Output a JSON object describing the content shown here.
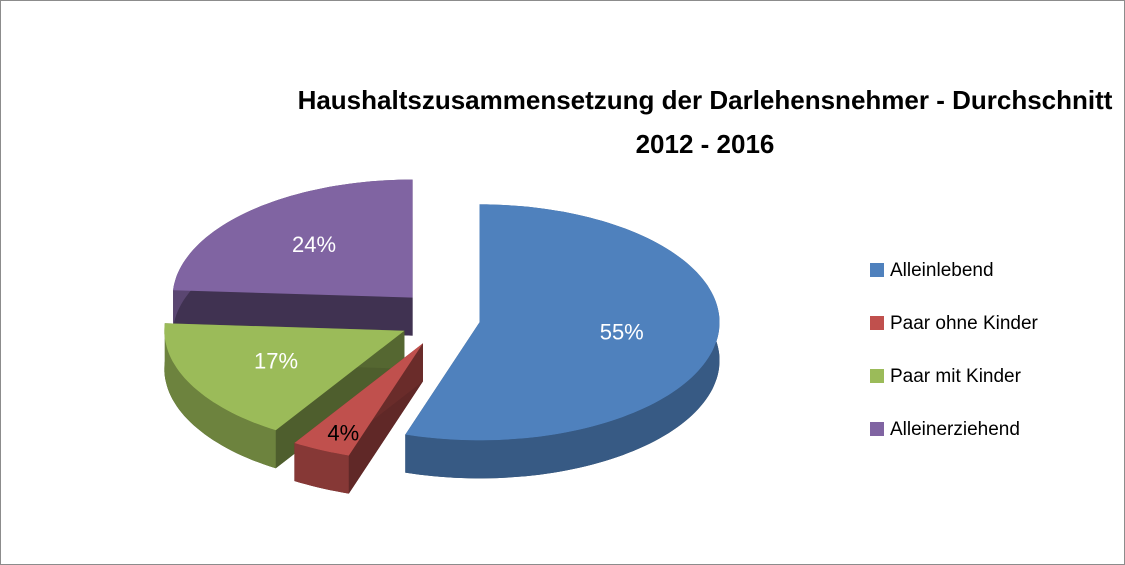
{
  "chart_data": {
    "type": "pie3d",
    "title": "Haushaltszusammensetzung der Darlehensnehmer - Durchschnitt 2012 - 2016",
    "categories": [
      "Alleinlebend",
      "Paar ohne Kinder",
      "Paar mit Kinder",
      "Alleinerziehend"
    ],
    "values": [
      55,
      4,
      17,
      24
    ],
    "value_labels": [
      "55%",
      "4%",
      "17%",
      "24%"
    ],
    "colors": [
      "#4f81bd",
      "#c0504d",
      "#9bbb59",
      "#8064a2"
    ],
    "legend": "right",
    "exploded": true
  }
}
